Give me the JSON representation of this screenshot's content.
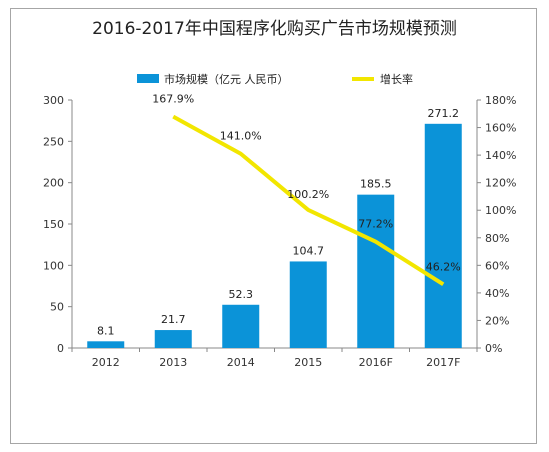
{
  "chart_data": {
    "type": "bar+line",
    "title": "2016-2017年中国程序化购买广告市场规模预测",
    "categories": [
      "2012",
      "2013",
      "2014",
      "2015",
      "2016F",
      "2017F"
    ],
    "series": [
      {
        "name": "市场规模（亿元 人民币）",
        "type": "bar",
        "axis": "left",
        "values": [
          8.1,
          21.7,
          52.3,
          104.7,
          185.5,
          271.2
        ],
        "labels": [
          "8.1",
          "21.7",
          "52.3",
          "104.7",
          "185.5",
          "271.2"
        ],
        "color": "#0b93d8"
      },
      {
        "name": "增长率",
        "type": "line",
        "axis": "right",
        "values": [
          null,
          167.9,
          141.0,
          100.2,
          77.2,
          46.2
        ],
        "labels": [
          "",
          "167.9%",
          "141.0%",
          "100.2%",
          "77.2%",
          "46.2%"
        ],
        "color": "#f2e600"
      }
    ],
    "y_left": {
      "min": 0,
      "max": 300,
      "ticks": [
        "0",
        "50",
        "100",
        "150",
        "200",
        "250",
        "300"
      ]
    },
    "y_right": {
      "min": 0,
      "max": 180,
      "ticks": [
        "0%",
        "20%",
        "40%",
        "60%",
        "80%",
        "100%",
        "120%",
        "140%",
        "160%",
        "180%"
      ]
    },
    "grid": false,
    "legend": "top"
  }
}
